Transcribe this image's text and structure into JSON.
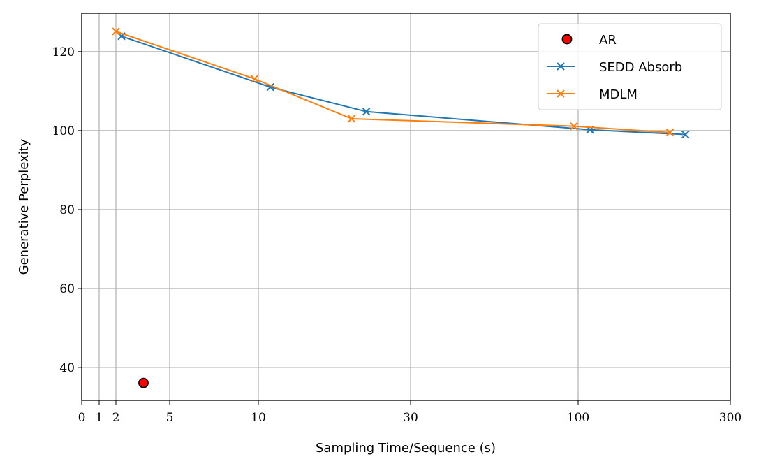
{
  "chart_data": {
    "type": "line",
    "title": "",
    "xlabel": "Sampling Time/Sequence (s)",
    "ylabel": "Generative Perplexity",
    "xscale": "symlog",
    "xlim": [
      0,
      300
    ],
    "ylim": [
      31.7,
      129.7
    ],
    "xticks": [
      0,
      1,
      2,
      5,
      10,
      30,
      100,
      300
    ],
    "yticks": [
      40,
      60,
      80,
      100,
      120
    ],
    "grid": true,
    "legend_position": "top-right",
    "series": [
      {
        "name": "AR",
        "kind": "scatter",
        "color": "#ff0000",
        "edge": "#000000",
        "x": [
          3.2
        ],
        "y": [
          36.1
        ]
      },
      {
        "name": "SEDD Absorb",
        "kind": "line",
        "marker": "x",
        "color": "#1f77b4",
        "x": [
          2.2,
          10.9,
          21.8,
          109,
          217
        ],
        "y": [
          123.9,
          111.0,
          104.8,
          100.2,
          99.0
        ]
      },
      {
        "name": "MDLM",
        "kind": "line",
        "marker": "x",
        "color": "#ff7f0e",
        "x": [
          2.0,
          9.7,
          19.6,
          97,
          194
        ],
        "y": [
          125.1,
          113.1,
          103.0,
          101.1,
          99.5
        ]
      }
    ]
  }
}
